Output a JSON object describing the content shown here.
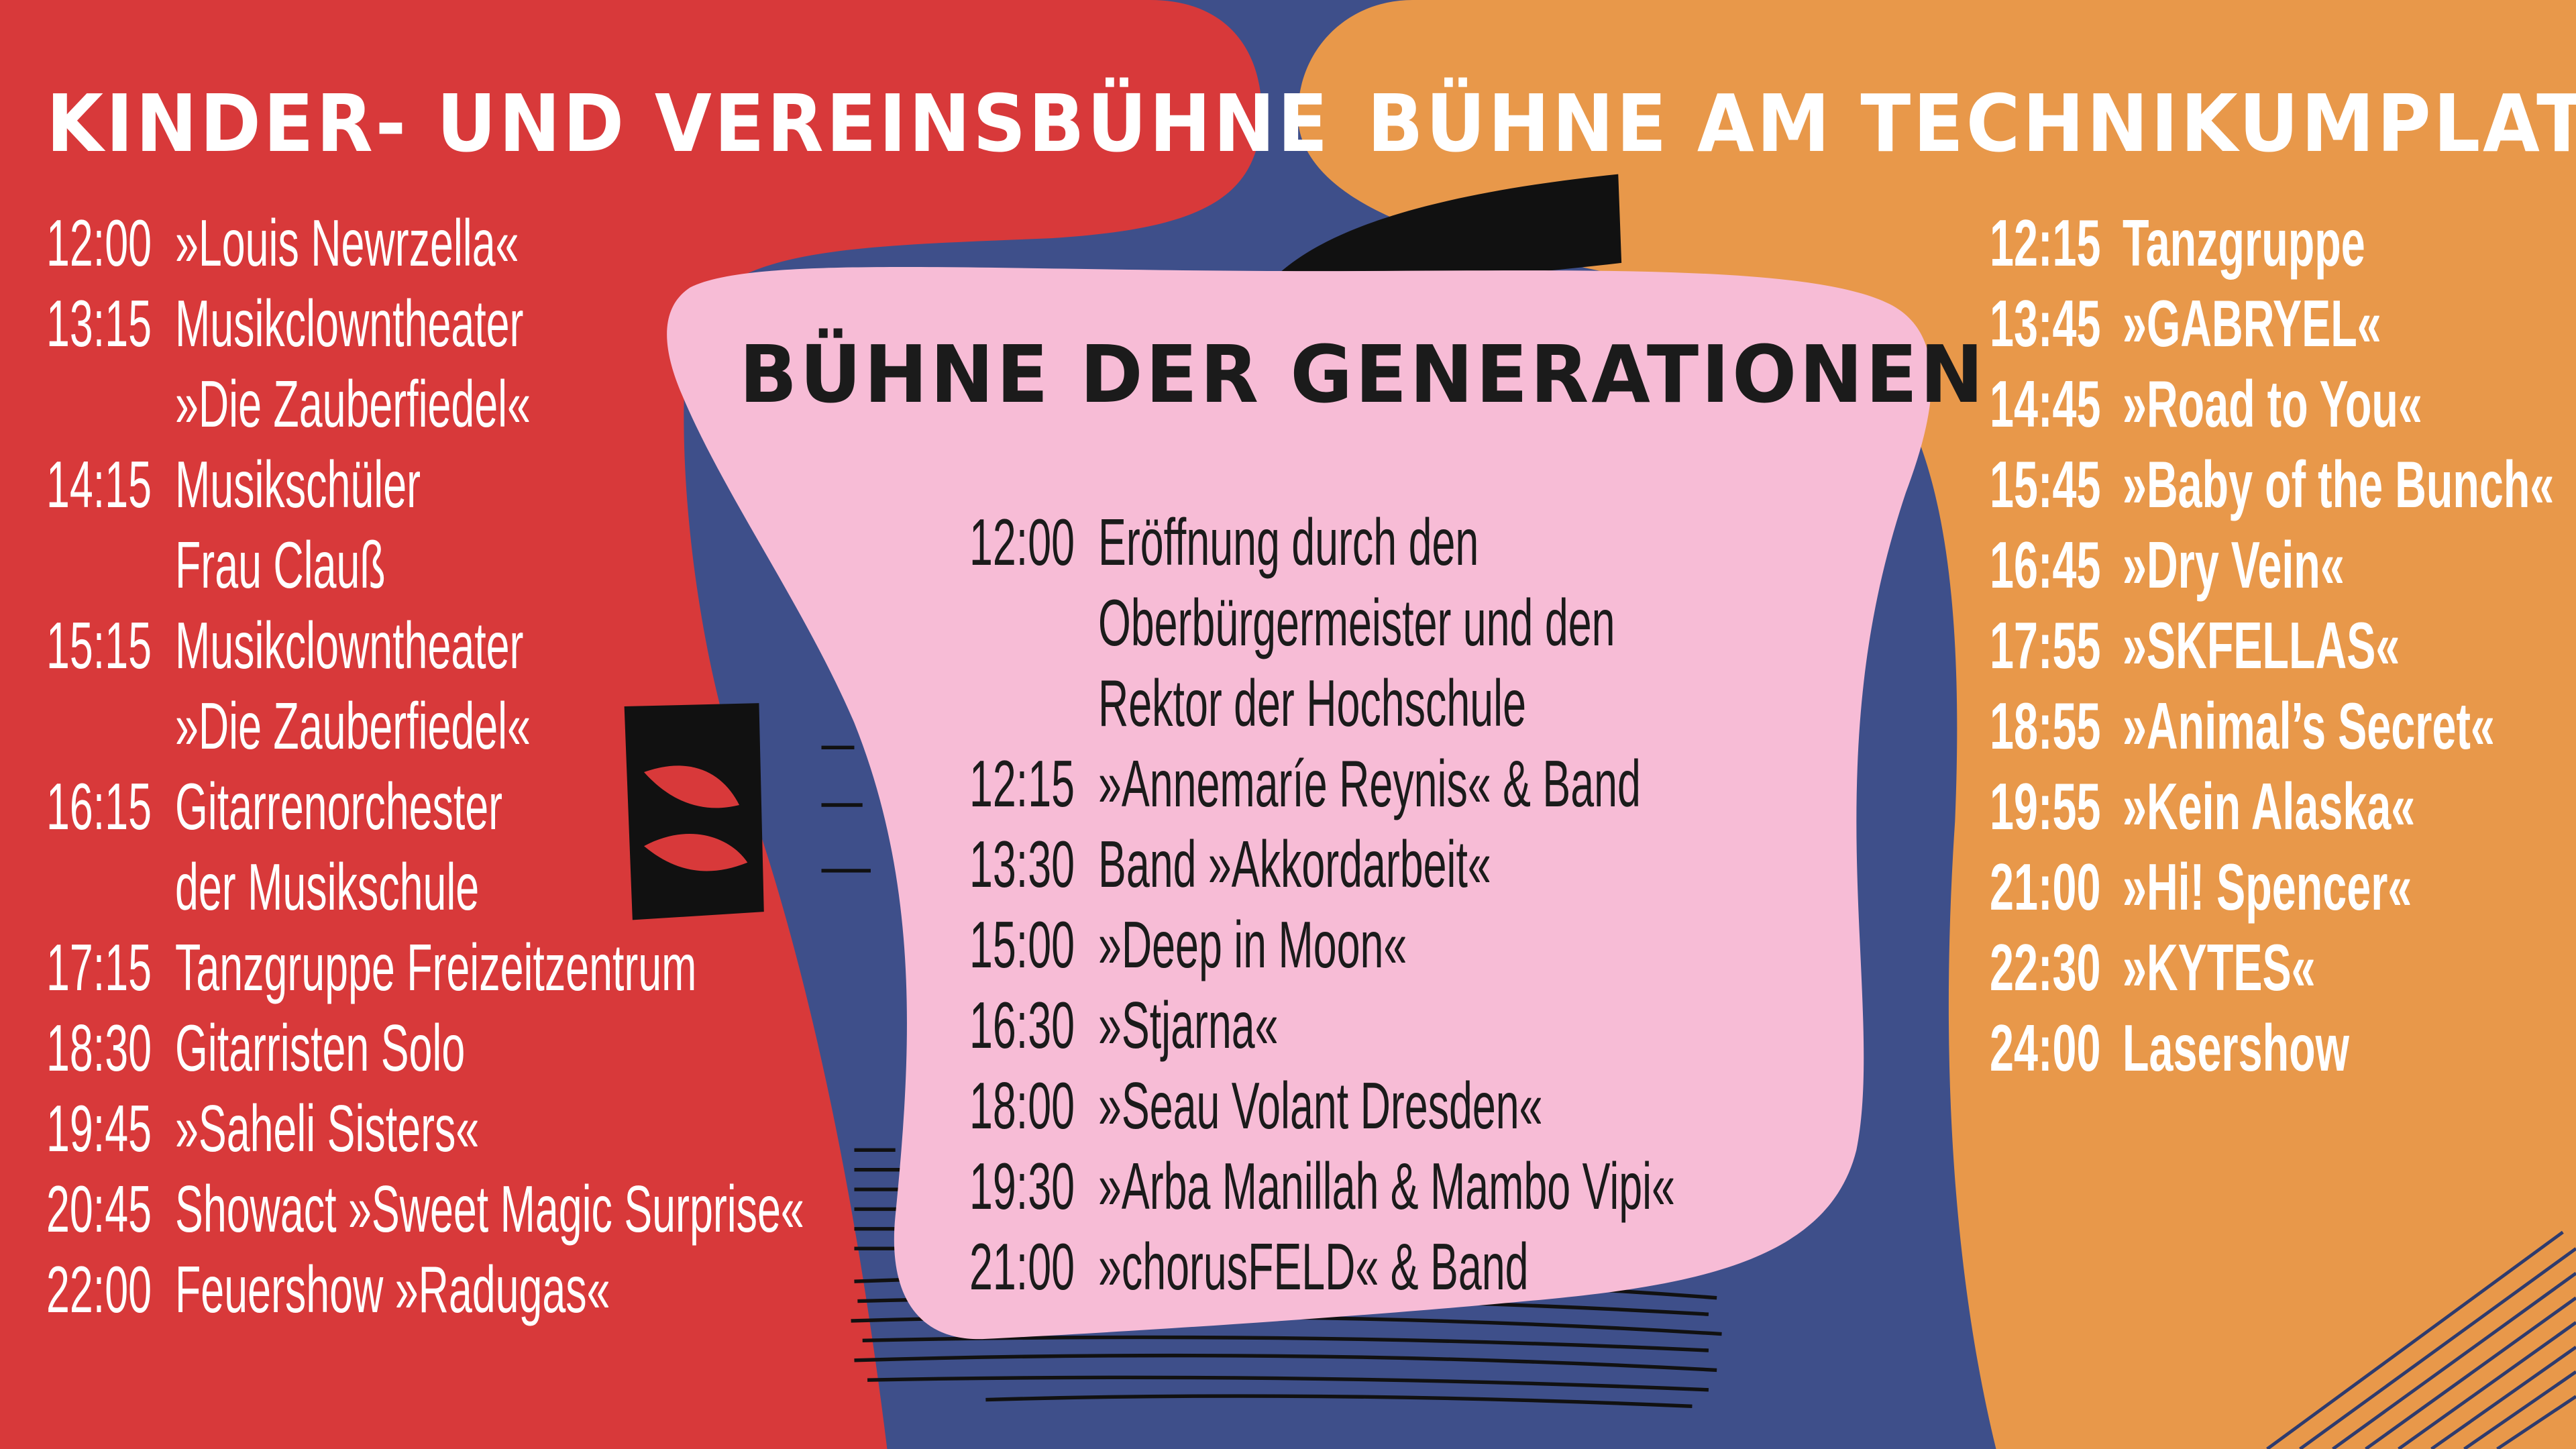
{
  "colors": {
    "background": "#3e4f8a",
    "red": "#d8393a",
    "orange": "#e8984a",
    "pink": "#f7bcd6",
    "text_light": "#ffffff",
    "text_dark": "#1b1b1b"
  },
  "stages": [
    {
      "title": "KINDER- UND VEREINSBÜHNE",
      "items": [
        {
          "time": "12:00",
          "lines": [
            "»Louis Newrzella«"
          ]
        },
        {
          "time": "13:15",
          "lines": [
            "Musikclowntheater",
            "»Die Zauberfiedel«"
          ]
        },
        {
          "time": "14:15",
          "lines": [
            "Musikschüler",
            "Frau Clauß"
          ]
        },
        {
          "time": "15:15",
          "lines": [
            "Musikclowntheater",
            "»Die Zauberfiedel«"
          ]
        },
        {
          "time": "16:15",
          "lines": [
            "Gitarrenorchester",
            "der Musikschule"
          ]
        },
        {
          "time": "17:15",
          "lines": [
            "Tanzgruppe Freizeitzentrum"
          ]
        },
        {
          "time": "18:30",
          "lines": [
            "Gitarristen Solo"
          ]
        },
        {
          "time": "19:45",
          "lines": [
            "»Saheli Sisters«"
          ]
        },
        {
          "time": "20:45",
          "lines": [
            "Showact »Sweet Magic Surprise«"
          ]
        },
        {
          "time": "22:00",
          "lines": [
            "Feuershow »Radugas«"
          ]
        }
      ]
    },
    {
      "title": "BÜHNE DER GENERATIONEN",
      "items": [
        {
          "time": "12:00",
          "lines": [
            "Eröffnung durch den",
            "Oberbürgermeister und den",
            "Rektor der Hochschule"
          ]
        },
        {
          "time": "12:15",
          "lines": [
            "»Annemaríe Reynis« & Band"
          ]
        },
        {
          "time": "13:30",
          "lines": [
            "Band »Akkordarbeit«"
          ]
        },
        {
          "time": "15:00",
          "lines": [
            "»Deep in Moon«"
          ]
        },
        {
          "time": "16:30",
          "lines": [
            "»Stjarna«"
          ]
        },
        {
          "time": "18:00",
          "lines": [
            "»Seau Volant Dresden«"
          ]
        },
        {
          "time": "19:30",
          "lines": [
            "»Arba Manillah & Mambo Vipi«"
          ]
        },
        {
          "time": "21:00",
          "lines": [
            "»chorusFELD« & Band"
          ]
        }
      ]
    },
    {
      "title": "BÜHNE AM TECHNIKUMPLATZ",
      "items": [
        {
          "time": "12:15",
          "lines": [
            "Tanzgruppe"
          ]
        },
        {
          "time": "13:45",
          "lines": [
            "»GABRYEL«"
          ]
        },
        {
          "time": "14:45",
          "lines": [
            "»Road to You«"
          ]
        },
        {
          "time": "15:45",
          "lines": [
            "»Baby of the Bunch«"
          ]
        },
        {
          "time": "16:45",
          "lines": [
            "»Dry Vein«"
          ]
        },
        {
          "time": "17:55",
          "lines": [
            "»SKFELLAS«"
          ]
        },
        {
          "time": "18:55",
          "lines": [
            "»Animal’s Secret«"
          ]
        },
        {
          "time": "19:55",
          "lines": [
            "»Kein Alaska«"
          ]
        },
        {
          "time": "21:00",
          "lines": [
            "»Hi! Spencer«"
          ]
        },
        {
          "time": "22:30",
          "lines": [
            "»KYTES«"
          ]
        },
        {
          "time": "24:00",
          "lines": [
            "Lasershow"
          ]
        }
      ]
    }
  ]
}
